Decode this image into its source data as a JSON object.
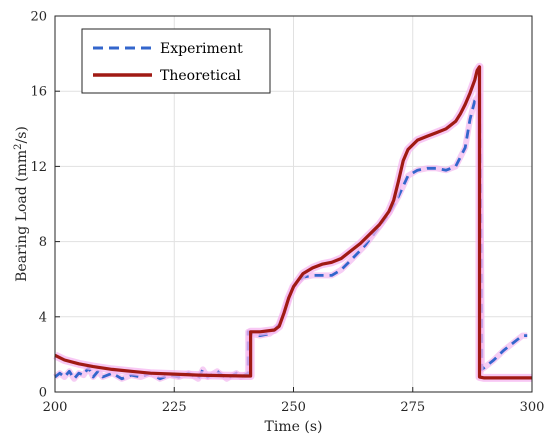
{
  "chart_data": {
    "type": "line",
    "xlabel": "Time (s)",
    "ylabel_main": "Bearing Load (mm",
    "ylabel_sup": "2",
    "ylabel_tail": "/s)",
    "xlim": [
      200,
      300
    ],
    "ylim": [
      0,
      20
    ],
    "xticks": [
      "200",
      "225",
      "250",
      "275",
      "300"
    ],
    "yticks": [
      "0",
      "4",
      "8",
      "12",
      "16",
      "20"
    ],
    "grid": true,
    "legend_position": "top-left",
    "series": [
      {
        "name": "Experiment",
        "color": "#3366cc",
        "style": "dashed",
        "x": [
          200,
          201,
          202,
          203,
          204,
          205,
          206,
          207,
          208,
          209,
          210,
          212,
          214,
          216,
          218,
          220,
          222,
          224,
          226,
          228,
          230,
          231,
          232,
          234,
          236,
          238,
          239,
          240.5,
          240.5,
          241,
          243,
          245,
          246,
          247,
          248,
          249,
          250,
          252,
          254,
          256,
          258,
          260,
          262,
          265,
          268,
          270,
          272,
          274,
          276,
          278,
          280,
          282,
          284,
          286,
          287,
          288,
          289,
          289.3,
          289.5,
          290,
          292,
          294,
          296,
          298,
          299
        ],
        "values": [
          0.8,
          1.0,
          0.8,
          1.1,
          0.7,
          1.0,
          0.9,
          1.3,
          0.8,
          1.1,
          0.8,
          1.0,
          0.7,
          0.9,
          0.8,
          1.0,
          0.7,
          0.9,
          0.8,
          1.0,
          0.7,
          1.2,
          0.8,
          1.1,
          0.7,
          1.0,
          0.8,
          1.0,
          3.2,
          3.1,
          3.0,
          3.1,
          3.3,
          3.6,
          4.2,
          5.0,
          5.6,
          6.1,
          6.2,
          6.2,
          6.2,
          6.5,
          7.0,
          7.8,
          8.8,
          9.5,
          10.4,
          11.5,
          11.8,
          11.9,
          11.9,
          11.8,
          12.0,
          13.0,
          14.5,
          15.5,
          15.8,
          8.0,
          1.2,
          1.3,
          1.7,
          2.2,
          2.6,
          3.0,
          3.0
        ]
      },
      {
        "name": "Theoretical",
        "color": "#a01a14",
        "style": "solid",
        "x": [
          200,
          202,
          205,
          208,
          212,
          216,
          220,
          225,
          230,
          235,
          240,
          241,
          241,
          243,
          246,
          247,
          248,
          249,
          250,
          252,
          254,
          256,
          258,
          260,
          262,
          264,
          266,
          268,
          270,
          271,
          272,
          273,
          274,
          276,
          278,
          280,
          282,
          284,
          285,
          286,
          287,
          288,
          288.5,
          289,
          289,
          290,
          295,
          300
        ],
        "values": [
          1.95,
          1.7,
          1.5,
          1.35,
          1.2,
          1.1,
          1.0,
          0.95,
          0.9,
          0.87,
          0.85,
          0.85,
          3.2,
          3.2,
          3.3,
          3.5,
          4.2,
          5.0,
          5.6,
          6.3,
          6.6,
          6.8,
          6.9,
          7.1,
          7.5,
          7.9,
          8.4,
          8.9,
          9.6,
          10.2,
          11.2,
          12.3,
          12.9,
          13.4,
          13.6,
          13.8,
          14.0,
          14.4,
          14.8,
          15.3,
          15.9,
          16.6,
          17.1,
          17.3,
          0.8,
          0.75,
          0.75,
          0.75
        ]
      }
    ]
  }
}
